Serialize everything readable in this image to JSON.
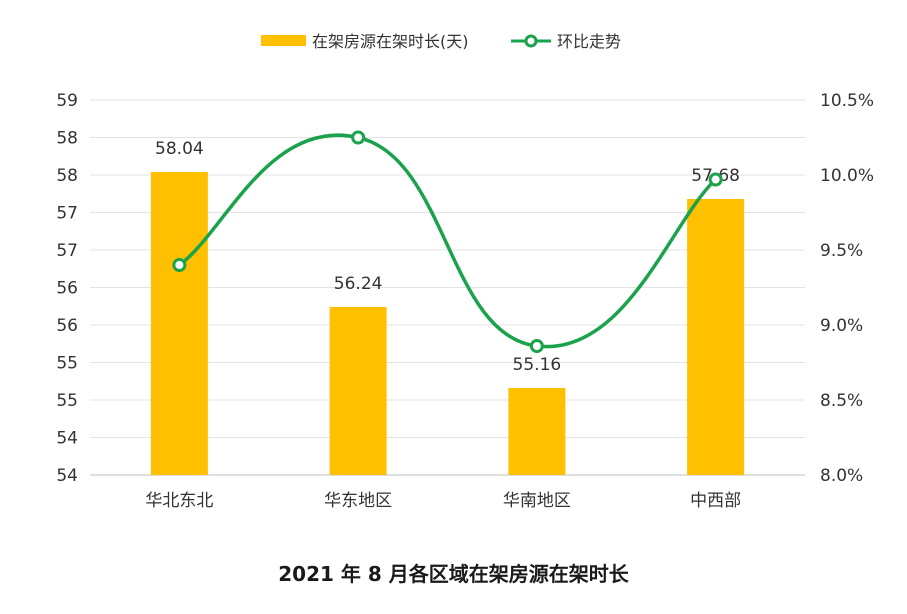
{
  "chart_data": {
    "type": "bar",
    "categories": [
      "华北东北",
      "华东地区",
      "华南地区",
      "中西部"
    ],
    "series": [
      {
        "name": "在架房源在架时长(天)",
        "type": "bar",
        "axis": "left",
        "values": [
          58.04,
          56.24,
          55.16,
          57.68
        ],
        "color": "#FFC000"
      },
      {
        "name": "环比走势",
        "type": "line",
        "axis": "right",
        "values": [
          0.094,
          0.1025,
          0.0886,
          0.0997
        ],
        "color": "#1AA34A",
        "smooth": true
      }
    ],
    "data_labels": [
      "58.04",
      "56.24",
      "55.16",
      "57.68"
    ],
    "left_axis": {
      "ylim": [
        54,
        59
      ],
      "tick_labels": [
        "54",
        "54",
        "55",
        "55",
        "56",
        "56",
        "57",
        "57",
        "58",
        "58",
        "59"
      ]
    },
    "right_axis": {
      "ylim": [
        0.08,
        0.105
      ],
      "tick_labels": [
        "8.0%",
        "8.5%",
        "9.0%",
        "9.5%",
        "10.0%",
        "10.5%"
      ]
    },
    "legend_position": "top-center",
    "grid": true
  },
  "caption": "2021 年 8 月各区域在架房源在架时长"
}
